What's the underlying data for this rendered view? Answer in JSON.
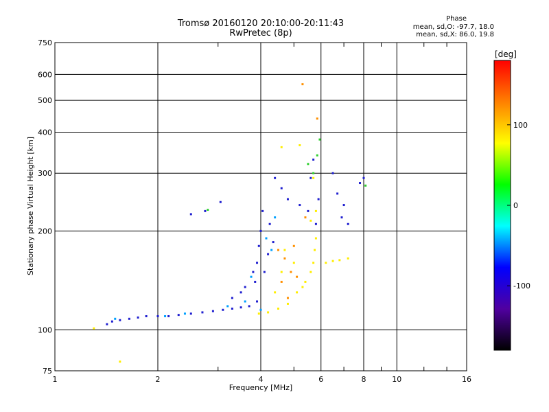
{
  "chart_data": {
    "type": "scatter",
    "title": "Tromsø 20160120 20:10:00-20:11:43",
    "subtitle": "RwPretec (8p)",
    "xlabel": "Frequency [MHz]",
    "ylabel": "Stationary phase Virtual Height [km]",
    "x_scale": "log",
    "y_scale": "log",
    "xlim": [
      1,
      16
    ],
    "ylim": [
      75,
      750
    ],
    "x_ticks": [
      1,
      2,
      4,
      6,
      8,
      10,
      16
    ],
    "y_ticks": [
      75,
      100,
      200,
      300,
      400,
      500,
      600,
      750
    ],
    "grid": true,
    "phase_header": "Phase",
    "phase_o": "mean, sd,O: -97.7, 18.0",
    "phase_x": "mean, sd,X: 86.0, 19.8",
    "colorbar": {
      "label": "[deg]",
      "range": [
        -180,
        180
      ],
      "ticks": [
        100,
        0,
        -100
      ],
      "colors": [
        "#ff0000",
        "#ff8000",
        "#ffff00",
        "#00ff00",
        "#00ffff",
        "#0000ff",
        "#5000a0",
        "#000000"
      ]
    },
    "series": [
      {
        "color": "#2020d0",
        "points": [
          [
            1.42,
            104
          ],
          [
            1.47,
            106
          ],
          [
            1.55,
            107
          ],
          [
            1.65,
            108
          ],
          [
            1.75,
            109
          ],
          [
            1.85,
            110
          ],
          [
            2.0,
            110
          ],
          [
            2.15,
            110
          ],
          [
            2.3,
            111
          ],
          [
            2.5,
            112
          ],
          [
            2.7,
            113
          ],
          [
            2.9,
            114
          ],
          [
            3.1,
            115
          ],
          [
            3.3,
            116
          ],
          [
            3.5,
            117
          ],
          [
            3.7,
            118
          ],
          [
            3.9,
            122
          ],
          [
            3.85,
            140
          ],
          [
            3.9,
            160
          ],
          [
            3.95,
            180
          ],
          [
            4.0,
            200
          ],
          [
            4.05,
            230
          ],
          [
            4.1,
            150
          ],
          [
            4.2,
            170
          ],
          [
            3.6,
            135
          ],
          [
            3.8,
            150
          ],
          [
            3.3,
            125
          ],
          [
            3.5,
            130
          ],
          [
            4.4,
            290
          ],
          [
            4.6,
            270
          ],
          [
            4.8,
            250
          ],
          [
            5.2,
            240
          ],
          [
            5.5,
            230
          ],
          [
            5.8,
            210
          ],
          [
            5.9,
            250
          ],
          [
            5.7,
            330
          ],
          [
            5.6,
            290
          ],
          [
            6.5,
            300
          ],
          [
            6.7,
            260
          ],
          [
            6.9,
            220
          ],
          [
            7.0,
            240
          ],
          [
            7.2,
            210
          ],
          [
            7.8,
            280
          ],
          [
            8.0,
            290
          ],
          [
            2.5,
            225
          ],
          [
            2.75,
            230
          ],
          [
            3.05,
            245
          ],
          [
            4.25,
            210
          ],
          [
            4.35,
            185
          ]
        ]
      },
      {
        "color": "#00a0ff",
        "points": [
          [
            2.1,
            110
          ],
          [
            2.4,
            112
          ],
          [
            3.2,
            118
          ],
          [
            3.6,
            122
          ],
          [
            4.0,
            115
          ],
          [
            4.15,
            190
          ],
          [
            4.3,
            175
          ],
          [
            3.75,
            145
          ],
          [
            4.4,
            220
          ],
          [
            1.5,
            108
          ]
        ]
      },
      {
        "color": "#ffee00",
        "points": [
          [
            3.95,
            112
          ],
          [
            4.2,
            113
          ],
          [
            4.5,
            116
          ],
          [
            4.8,
            120
          ],
          [
            5.1,
            130
          ],
          [
            5.4,
            140
          ],
          [
            5.6,
            150
          ],
          [
            5.7,
            160
          ],
          [
            5.75,
            175
          ],
          [
            5.8,
            190
          ],
          [
            4.4,
            130
          ],
          [
            4.6,
            150
          ],
          [
            4.7,
            175
          ],
          [
            5.0,
            160
          ],
          [
            5.3,
            135
          ],
          [
            5.6,
            215
          ],
          [
            5.8,
            230
          ],
          [
            5.7,
            290
          ],
          [
            6.2,
            160
          ],
          [
            6.5,
            162
          ],
          [
            6.8,
            163
          ],
          [
            7.2,
            165
          ],
          [
            4.6,
            360
          ],
          [
            5.2,
            365
          ],
          [
            1.3,
            101
          ],
          [
            1.55,
            80
          ]
        ]
      },
      {
        "color": "#ff9000",
        "points": [
          [
            4.5,
            175
          ],
          [
            4.7,
            165
          ],
          [
            4.9,
            150
          ],
          [
            5.1,
            145
          ],
          [
            5.0,
            180
          ],
          [
            4.6,
            140
          ],
          [
            4.8,
            125
          ],
          [
            5.4,
            220
          ],
          [
            5.3,
            560
          ],
          [
            5.85,
            440
          ]
        ]
      },
      {
        "color": "#30d030",
        "points": [
          [
            5.5,
            320
          ],
          [
            5.7,
            300
          ],
          [
            5.85,
            340
          ],
          [
            5.95,
            380
          ],
          [
            8.1,
            275
          ],
          [
            2.8,
            232
          ]
        ]
      }
    ]
  }
}
